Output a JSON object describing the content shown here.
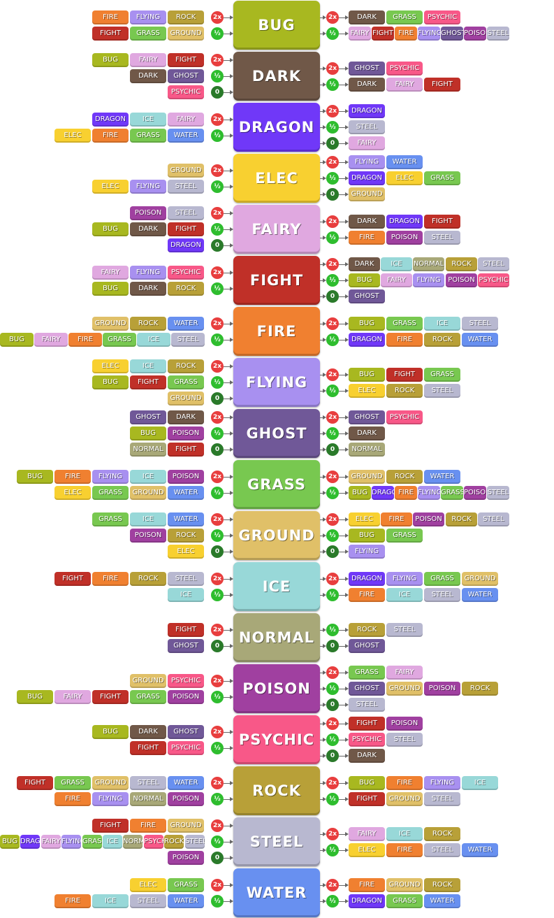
{
  "labels": {
    "eff_2x": "2x",
    "eff_half": "½",
    "eff_0": "0"
  },
  "colors": {
    "BUG": "#a8b820",
    "DARK": "#705848",
    "DRAGON": "#7038f8",
    "ELEC": "#f8d030",
    "FAIRY": "#e0a8e0",
    "FIGHT": "#c03028",
    "FIRE": "#f08030",
    "FLYING": "#a890f0",
    "GHOST": "#705898",
    "GRASS": "#78c850",
    "GROUND": "#e0c068",
    "ICE": "#98d8d8",
    "NORMAL": "#a8a878",
    "POISON": "#a040a0",
    "PSYCHIC": "#f85888",
    "ROCK": "#b8a038",
    "STEEL": "#b8b8d0",
    "WATER": "#6890f0",
    "badge_2x": "#e83e3e",
    "badge_half": "#2ebd2e",
    "badge_0": "#2a7a2a"
  },
  "types": [
    {
      "name": "BUG",
      "left": [
        {
          "badge": "2x",
          "chips": [
            "FIRE",
            "FLYING",
            "ROCK"
          ]
        },
        {
          "badge": "½",
          "chips": [
            "FIGHT",
            "GRASS",
            "GROUND"
          ]
        }
      ],
      "right": [
        {
          "badge": "2x",
          "chips": [
            "DARK",
            "GRASS",
            "PSYCHIC"
          ]
        },
        {
          "badge": "½",
          "chips": [
            "FAIRY",
            "FIGHT",
            "FIRE",
            "FLYING",
            "GHOST",
            "POISON",
            "STEEL"
          ]
        }
      ]
    },
    {
      "name": "DARK",
      "left": [
        {
          "badge": "2x",
          "chips": [
            "BUG",
            "FAIRY",
            "FIGHT"
          ]
        },
        {
          "badge": "½",
          "chips": [
            "DARK",
            "GHOST"
          ]
        },
        {
          "badge": "0",
          "chips": [
            "PSYCHIC"
          ]
        }
      ],
      "right": [
        {
          "badge": "2x",
          "chips": [
            "GHOST",
            "PSYCHIC"
          ]
        },
        {
          "badge": "½",
          "chips": [
            "DARK",
            "FAIRY",
            "FIGHT"
          ]
        }
      ]
    },
    {
      "name": "DRAGON",
      "left": [
        {
          "badge": "2x",
          "chips": [
            "DRAGON",
            "ICE",
            "FAIRY"
          ]
        },
        {
          "badge": "½",
          "chips": [
            "ELEC",
            "FIRE",
            "GRASS",
            "WATER"
          ]
        }
      ],
      "right": [
        {
          "badge": "2x",
          "chips": [
            "DRAGON"
          ]
        },
        {
          "badge": "½",
          "chips": [
            "STEEL"
          ]
        },
        {
          "badge": "0",
          "chips": [
            "FAIRY"
          ]
        }
      ]
    },
    {
      "name": "ELEC",
      "left": [
        {
          "badge": "2x",
          "chips": [
            "GROUND"
          ]
        },
        {
          "badge": "½",
          "chips": [
            "ELEC",
            "FLYING",
            "STEEL"
          ]
        }
      ],
      "right": [
        {
          "badge": "2x",
          "chips": [
            "FLYING",
            "WATER"
          ]
        },
        {
          "badge": "½",
          "chips": [
            "DRAGON",
            "ELEC",
            "GRASS"
          ]
        },
        {
          "badge": "0",
          "chips": [
            "GROUND"
          ]
        }
      ]
    },
    {
      "name": "FAIRY",
      "left": [
        {
          "badge": "2x",
          "chips": [
            "POISON",
            "STEEL"
          ]
        },
        {
          "badge": "½",
          "chips": [
            "BUG",
            "DARK",
            "FIGHT"
          ]
        },
        {
          "badge": "0",
          "chips": [
            "DRAGON"
          ]
        }
      ],
      "right": [
        {
          "badge": "2x",
          "chips": [
            "DARK",
            "DRAGON",
            "FIGHT"
          ]
        },
        {
          "badge": "½",
          "chips": [
            "FIRE",
            "POISON",
            "STEEL"
          ]
        }
      ]
    },
    {
      "name": "FIGHT",
      "left": [
        {
          "badge": "2x",
          "chips": [
            "FAIRY",
            "FLYING",
            "PSYCHIC"
          ]
        },
        {
          "badge": "½",
          "chips": [
            "BUG",
            "DARK",
            "ROCK"
          ]
        }
      ],
      "right": [
        {
          "badge": "2x",
          "chips": [
            "DARK",
            "ICE",
            "NORMAL",
            "ROCK",
            "STEEL"
          ]
        },
        {
          "badge": "½",
          "chips": [
            "BUG",
            "FAIRY",
            "FLYING",
            "POISON",
            "PSYCHIC"
          ]
        },
        {
          "badge": "0",
          "chips": [
            "GHOST"
          ]
        }
      ]
    },
    {
      "name": "FIRE",
      "left": [
        {
          "badge": "2x",
          "chips": [
            "GROUND",
            "ROCK",
            "WATER"
          ]
        },
        {
          "badge": "½",
          "chips": [
            "BUG",
            "FAIRY",
            "FIRE",
            "GRASS",
            "ICE",
            "STEEL"
          ]
        }
      ],
      "right": [
        {
          "badge": "2x",
          "chips": [
            "BUG",
            "GRASS",
            "ICE",
            "STEEL"
          ]
        },
        {
          "badge": "½",
          "chips": [
            "DRAGON",
            "FIRE",
            "ROCK",
            "WATER"
          ]
        }
      ]
    },
    {
      "name": "FLYING",
      "left": [
        {
          "badge": "2x",
          "chips": [
            "ELEC",
            "ICE",
            "ROCK"
          ]
        },
        {
          "badge": "½",
          "chips": [
            "BUG",
            "FIGHT",
            "GRASS"
          ]
        },
        {
          "badge": "0",
          "chips": [
            "GROUND"
          ]
        }
      ],
      "right": [
        {
          "badge": "2x",
          "chips": [
            "BUG",
            "FIGHT",
            "GRASS"
          ]
        },
        {
          "badge": "½",
          "chips": [
            "ELEC",
            "ROCK",
            "STEEL"
          ]
        }
      ]
    },
    {
      "name": "GHOST",
      "left": [
        {
          "badge": "2x",
          "chips": [
            "GHOST",
            "DARK"
          ]
        },
        {
          "badge": "½",
          "chips": [
            "BUG",
            "POISON"
          ]
        },
        {
          "badge": "0",
          "chips": [
            "NORMAL",
            "FIGHT"
          ]
        }
      ],
      "right": [
        {
          "badge": "2x",
          "chips": [
            "GHOST",
            "PSYCHIC"
          ]
        },
        {
          "badge": "½",
          "chips": [
            "DARK"
          ]
        },
        {
          "badge": "0",
          "chips": [
            "NORMAL"
          ]
        }
      ]
    },
    {
      "name": "GRASS",
      "left": [
        {
          "badge": "2x",
          "chips": [
            "BUG",
            "FIRE",
            "FLYING",
            "ICE",
            "POISON"
          ]
        },
        {
          "badge": "½",
          "chips": [
            "ELEC",
            "GRASS",
            "GROUND",
            "WATER"
          ]
        }
      ],
      "right": [
        {
          "badge": "2x",
          "chips": [
            "GROUND",
            "ROCK",
            "WATER"
          ]
        },
        {
          "badge": "½",
          "chips": [
            "BUG",
            "DRAGON",
            "FIRE",
            "FLYING",
            "GRASS",
            "POISON",
            "STEEL"
          ]
        }
      ]
    },
    {
      "name": "GROUND",
      "left": [
        {
          "badge": "2x",
          "chips": [
            "GRASS",
            "ICE",
            "WATER"
          ]
        },
        {
          "badge": "½",
          "chips": [
            "POISON",
            "ROCK"
          ]
        },
        {
          "badge": "0",
          "chips": [
            "ELEC"
          ]
        }
      ],
      "right": [
        {
          "badge": "2x",
          "chips": [
            "ELEC",
            "FIRE",
            "POISON",
            "ROCK",
            "STEEL"
          ]
        },
        {
          "badge": "½",
          "chips": [
            "BUG",
            "GRASS"
          ]
        },
        {
          "badge": "0",
          "chips": [
            "FLYING"
          ]
        }
      ]
    },
    {
      "name": "ICE",
      "left": [
        {
          "badge": "2x",
          "chips": [
            "FIGHT",
            "FIRE",
            "ROCK",
            "STEEL"
          ]
        },
        {
          "badge": "½",
          "chips": [
            "ICE"
          ]
        }
      ],
      "right": [
        {
          "badge": "2x",
          "chips": [
            "DRAGON",
            "FLYING",
            "GRASS",
            "GROUND"
          ]
        },
        {
          "badge": "½",
          "chips": [
            "FIRE",
            "ICE",
            "STEEL",
            "WATER"
          ]
        }
      ]
    },
    {
      "name": "NORMAL",
      "left": [
        {
          "badge": "2x",
          "chips": [
            "FIGHT"
          ]
        },
        {
          "badge": "0",
          "chips": [
            "GHOST"
          ]
        }
      ],
      "right": [
        {
          "badge": "½",
          "chips": [
            "ROCK",
            "STEEL"
          ]
        },
        {
          "badge": "0",
          "chips": [
            "GHOST"
          ]
        }
      ]
    },
    {
      "name": "POISON",
      "left": [
        {
          "badge": "2x",
          "chips": [
            "GROUND",
            "PSYCHIC"
          ]
        },
        {
          "badge": "½",
          "chips": [
            "BUG",
            "FAIRY",
            "FIGHT",
            "GRASS",
            "POISON"
          ]
        }
      ],
      "right": [
        {
          "badge": "2x",
          "chips": [
            "GRASS",
            "FAIRY"
          ]
        },
        {
          "badge": "½",
          "chips": [
            "GHOST",
            "GROUND",
            "POISON",
            "ROCK"
          ]
        },
        {
          "badge": "0",
          "chips": [
            "STEEL"
          ]
        }
      ]
    },
    {
      "name": "PSYCHIC",
      "left": [
        {
          "badge": "2x",
          "chips": [
            "BUG",
            "DARK",
            "GHOST"
          ]
        },
        {
          "badge": "½",
          "chips": [
            "FIGHT",
            "PSYCHIC"
          ]
        }
      ],
      "right": [
        {
          "badge": "2x",
          "chips": [
            "FIGHT",
            "POISON"
          ]
        },
        {
          "badge": "½",
          "chips": [
            "PSYCHIC",
            "STEEL"
          ]
        },
        {
          "badge": "0",
          "chips": [
            "DARK"
          ]
        }
      ]
    },
    {
      "name": "ROCK",
      "left": [
        {
          "badge": "2x",
          "chips": [
            "FIGHT",
            "GRASS",
            "GROUND",
            "STEEL",
            "WATER"
          ]
        },
        {
          "badge": "½",
          "chips": [
            "FIRE",
            "FLYING",
            "NORMAL",
            "POISON"
          ]
        }
      ],
      "right": [
        {
          "badge": "2x",
          "chips": [
            "BUG",
            "FIRE",
            "FLYING",
            "ICE"
          ]
        },
        {
          "badge": "½",
          "chips": [
            "FIGHT",
            "GROUND",
            "STEEL"
          ]
        }
      ]
    },
    {
      "name": "STEEL",
      "left": [
        {
          "badge": "2x",
          "chips": [
            "FIGHT",
            "FIRE",
            "GROUND"
          ]
        },
        {
          "badge": "½",
          "chips": [
            "BUG",
            "DRAGON",
            "FAIRY",
            "FLYING",
            "GRASS",
            "ICE",
            "NORMAL",
            "PSYCHIC",
            "ROCK",
            "STEEL"
          ]
        },
        {
          "badge": "0",
          "chips": [
            "POISON"
          ]
        }
      ],
      "right": [
        {
          "badge": "2x",
          "chips": [
            "FAIRY",
            "ICE",
            "ROCK"
          ]
        },
        {
          "badge": "½",
          "chips": [
            "ELEC",
            "FIRE",
            "STEEL",
            "WATER"
          ]
        }
      ]
    },
    {
      "name": "WATER",
      "left": [
        {
          "badge": "2x",
          "chips": [
            "ELEC",
            "GRASS"
          ]
        },
        {
          "badge": "½",
          "chips": [
            "FIRE",
            "ICE",
            "STEEL",
            "WATER"
          ]
        }
      ],
      "right": [
        {
          "badge": "2x",
          "chips": [
            "FIRE",
            "GROUND",
            "ROCK"
          ]
        },
        {
          "badge": "½",
          "chips": [
            "DRAGON",
            "GRASS",
            "WATER"
          ]
        }
      ]
    }
  ]
}
